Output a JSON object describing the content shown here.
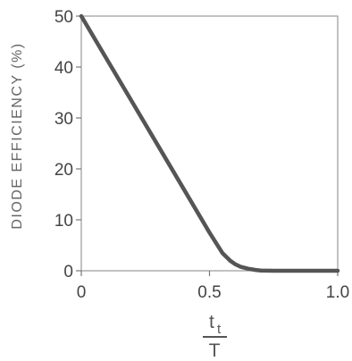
{
  "chart_data": {
    "type": "line",
    "title": "",
    "ylabel": "DIODE EFFICIENCY (%)",
    "xlabel": {
      "numerator": "t",
      "subscript": "t",
      "denominator": "T"
    },
    "xlim": [
      0,
      1.0
    ],
    "ylim": [
      0,
      50
    ],
    "grid": false,
    "legend": "none",
    "x_ticks": [
      {
        "value": 0,
        "label": "0"
      },
      {
        "value": 0.5,
        "label": "0.5"
      },
      {
        "value": 1.0,
        "label": "1.0"
      }
    ],
    "y_ticks": [
      {
        "value": 0,
        "label": "0"
      },
      {
        "value": 10,
        "label": "10"
      },
      {
        "value": 20,
        "label": "20"
      },
      {
        "value": 30,
        "label": "30"
      },
      {
        "value": 40,
        "label": "40"
      },
      {
        "value": 50,
        "label": "50"
      }
    ],
    "series": [
      {
        "color": "#555555",
        "x": [
          0,
          0.1,
          0.2,
          0.3,
          0.4,
          0.5,
          0.55,
          0.58,
          0.6,
          0.62,
          0.65,
          0.68,
          0.7,
          0.75,
          1.0
        ],
        "y": [
          50,
          41.5,
          33,
          24.5,
          16,
          7.5,
          3.5,
          2,
          1.3,
          0.8,
          0.4,
          0.15,
          0.05,
          0,
          0
        ]
      }
    ]
  }
}
